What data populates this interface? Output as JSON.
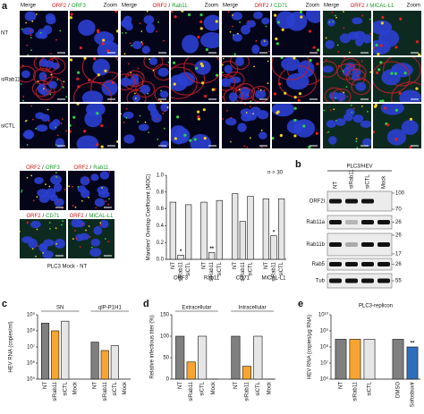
{
  "panel_labels": [
    "a",
    "b",
    "c",
    "d",
    "e"
  ],
  "microscopy": {
    "rows": [
      "NT",
      "siRab11",
      "siCTL"
    ],
    "columns": [
      "Merge",
      "Zoom"
    ],
    "separator": "/",
    "groups": [
      {
        "red": "ORF2",
        "green": "ORF3"
      },
      {
        "red": "ORF2",
        "green": "Rab11"
      },
      {
        "red": "ORF2",
        "green": "CD71"
      },
      {
        "red": "ORF2",
        "green": "MICAL-L1"
      }
    ],
    "mock_caption": "PLC3 Mock - NT"
  },
  "blot": {
    "title": "PLC3/HEV",
    "lanes": [
      "NT",
      "siRab11",
      "siCTL",
      "Mock"
    ],
    "rows": [
      {
        "label": "ORF2i",
        "markers": [
          100,
          70
        ]
      },
      {
        "label": "Rab11a",
        "markers": [
          26
        ]
      },
      {
        "label": "Rab11b",
        "markers": [
          26,
          17
        ]
      },
      {
        "label": "Rab5",
        "markers": [
          26
        ]
      },
      {
        "label": "Tub",
        "markers": [
          55
        ]
      }
    ]
  },
  "chart_data": [
    {
      "type": "bar",
      "y_label": "Manders' Overlap Coefficient (MOC)",
      "annotation": "n > 30",
      "ylim": [
        0,
        1
      ],
      "yticks": [
        {
          "value": 0,
          "label": "0.0"
        },
        0.2,
        0.4,
        0.6,
        0.8,
        {
          "value": 1,
          "label": "1.0"
        }
      ],
      "groups": [
        {
          "name": "ORF3",
          "categories": [
            "NT",
            "siRab11",
            "siCTL"
          ],
          "values": [
            0.68,
            0.05,
            0.65
          ],
          "significance": [
            null,
            "*",
            null
          ],
          "colors": [
            "#e6e6e6",
            "#e6e6e6",
            "#e6e6e6"
          ]
        },
        {
          "name": "Rab11",
          "categories": [
            "NT",
            "siRab11",
            "siCTL"
          ],
          "values": [
            0.68,
            0.08,
            0.7
          ],
          "significance": [
            null,
            "**",
            null
          ],
          "colors": [
            "#e6e6e6",
            "#e6e6e6",
            "#e6e6e6"
          ]
        },
        {
          "name": "CD71",
          "categories": [
            "NT",
            "siRab11",
            "siCTL"
          ],
          "values": [
            0.78,
            0.45,
            0.75
          ],
          "significance": [
            null,
            null,
            null
          ],
          "colors": [
            "#e6e6e6",
            "#e6e6e6",
            "#e6e6e6"
          ]
        },
        {
          "name": "MICAL-L1",
          "categories": [
            "NT",
            "siRab11",
            "siCTL"
          ],
          "values": [
            0.72,
            0.28,
            0.72
          ],
          "significance": [
            null,
            "*",
            null
          ],
          "colors": [
            "#e6e6e6",
            "#e6e6e6",
            "#e6e6e6"
          ]
        }
      ]
    },
    {
      "type": "bar",
      "y_label": "HEV RNA (copies/ml)",
      "log_scale": true,
      "ylim": [
        100000,
        1000000000
      ],
      "yticks": [
        {
          "value": 100000,
          "label": "10⁵"
        },
        {
          "value": 1000000,
          "label": "10⁶"
        },
        {
          "value": 10000000,
          "label": "10⁷"
        },
        {
          "value": 100000000,
          "label": "10⁸"
        },
        {
          "value": 1000000000,
          "label": "10⁹"
        }
      ],
      "groups": [
        {
          "name": "SN",
          "categories": [
            "NT",
            "siRab11",
            "siCTL",
            "Mock"
          ],
          "values": [
            300000000,
            100000000,
            400000000,
            null
          ],
          "significance": [
            null,
            null,
            null,
            null
          ],
          "colors": [
            "#7f7f7f",
            "#f7a531",
            "#e6e6e6",
            "#ffffff"
          ]
        },
        {
          "name": "qIP-P1H1",
          "categories": [
            "NT",
            "siRab11",
            "siCTL",
            "Mock"
          ],
          "values": [
            20000000,
            6000000,
            12000000,
            null
          ],
          "significance": [
            null,
            null,
            null,
            null
          ],
          "colors": [
            "#7f7f7f",
            "#f7a531",
            "#e6e6e6",
            "#ffffff"
          ]
        }
      ]
    },
    {
      "type": "bar",
      "y_label": "Relative infectious titer (%)",
      "ylim": [
        0,
        150
      ],
      "yticks": [
        0,
        50,
        100,
        150
      ],
      "groups": [
        {
          "name": "Extracellular",
          "categories": [
            "NT",
            "siRab11",
            "siCTL",
            "Mock"
          ],
          "values": [
            100,
            40,
            100,
            0
          ],
          "significance": [
            null,
            null,
            null,
            null
          ],
          "colors": [
            "#7f7f7f",
            "#f7a531",
            "#e6e6e6",
            "#ffffff"
          ]
        },
        {
          "name": "Intracellular",
          "categories": [
            "NT",
            "siRab11",
            "siCTL",
            "Mock"
          ],
          "values": [
            100,
            30,
            100,
            0
          ],
          "significance": [
            null,
            null,
            null,
            null
          ],
          "colors": [
            "#7f7f7f",
            "#f7a531",
            "#e6e6e6",
            "#ffffff"
          ]
        }
      ]
    },
    {
      "type": "bar",
      "title": "PLC3-replicon",
      "y_label": "HEV RNA (copies/µg RNA)",
      "log_scale": true,
      "ylim": [
        1000000,
        10000000000
      ],
      "yticks": [
        {
          "value": 1000000,
          "label": "10⁶"
        },
        {
          "value": 10000000,
          "label": "10⁷"
        },
        {
          "value": 100000000,
          "label": "10⁸"
        },
        {
          "value": 1000000000,
          "label": "10⁹"
        },
        {
          "value": 10000000000,
          "label": "10¹⁰"
        }
      ],
      "groups": [
        {
          "categories": [
            "NT",
            "siRab11",
            "siCTL"
          ],
          "values": [
            300000000,
            300000000,
            300000000
          ],
          "significance": [
            null,
            null,
            null
          ],
          "colors": [
            "#7f7f7f",
            "#f7a531",
            "#e6e6e6"
          ]
        },
        {
          "categories": [
            "DMSO",
            "Sofosbuvir"
          ],
          "values": [
            300000000,
            100000000
          ],
          "significance": [
            null,
            "**"
          ],
          "colors": [
            "#7f7f7f",
            "#2e6fbd"
          ]
        }
      ]
    }
  ]
}
